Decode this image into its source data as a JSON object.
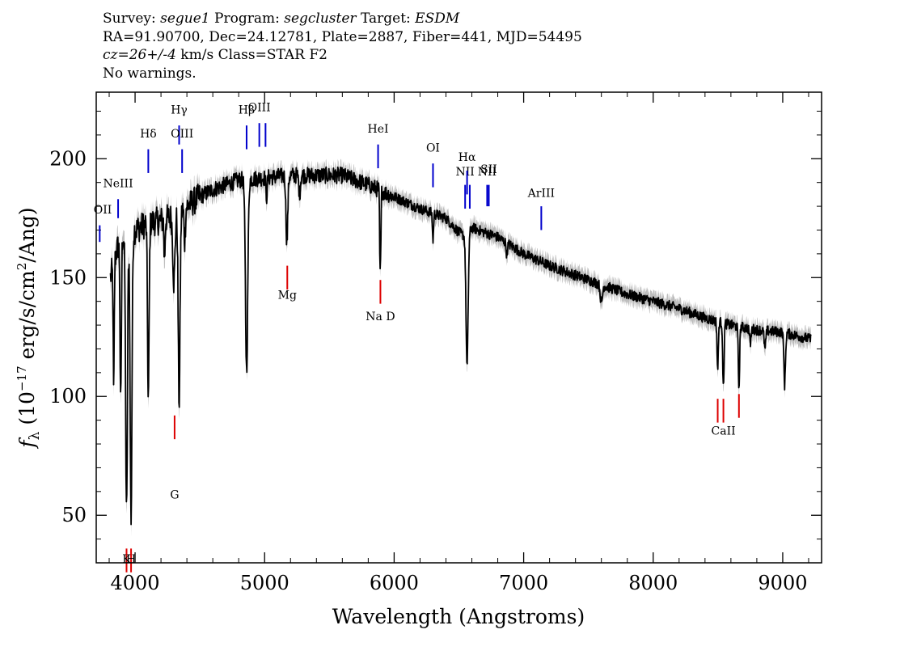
{
  "header": {
    "line1": {
      "survey_label": "Survey: ",
      "survey": "segue1",
      "program_label": " Program: ",
      "program": "segcluster",
      "target_label": " Target: ",
      "target": "ESDM"
    },
    "line2": "RA=91.90700, Dec=24.12781, Plate=2887, Fiber=441, MJD=54495",
    "line3": {
      "cz": "cz=26+/-4",
      "rest": " km/s Class=STAR F2"
    },
    "line4": "No warnings."
  },
  "chart_data": {
    "type": "line",
    "title": "",
    "xlabel": "Wavelength (Angstroms)",
    "ylabel": "fλ (10⁻¹⁷ erg/s/cm²/Ang)",
    "xlim": [
      3700,
      9300
    ],
    "ylim": [
      30,
      228
    ],
    "xticks": [
      4000,
      5000,
      6000,
      7000,
      8000,
      9000
    ],
    "xtick_labels": [
      "4000",
      "5000",
      "6000",
      "7000",
      "8000",
      "9000"
    ],
    "yticks": [
      50,
      100,
      150,
      200
    ],
    "ytick_labels": [
      "50",
      "100",
      "150",
      "200"
    ],
    "x_minor_step": 200,
    "y_minor_step": 10,
    "grid": false,
    "colors": {
      "spectrum": "#000000",
      "error_band": "#bdbdbd",
      "emission": "#0000cc",
      "absorption": "#dd0000"
    },
    "continuum_knots": [
      [
        3810,
        150
      ],
      [
        3860,
        162
      ],
      [
        3900,
        167
      ],
      [
        4000,
        170
      ],
      [
        4100,
        173
      ],
      [
        4200,
        174
      ],
      [
        4300,
        176
      ],
      [
        4400,
        180
      ],
      [
        4500,
        184
      ],
      [
        4600,
        187
      ],
      [
        4700,
        189
      ],
      [
        4800,
        191
      ],
      [
        5000,
        192
      ],
      [
        5200,
        193
      ],
      [
        5400,
        193
      ],
      [
        5600,
        193
      ],
      [
        5800,
        189
      ],
      [
        6000,
        184
      ],
      [
        6200,
        179
      ],
      [
        6400,
        175
      ],
      [
        6500,
        169
      ],
      [
        6560,
        167
      ],
      [
        6600,
        171
      ],
      [
        6800,
        167
      ],
      [
        7000,
        160
      ],
      [
        7200,
        155
      ],
      [
        7400,
        151
      ],
      [
        7600,
        147
      ],
      [
        7800,
        143
      ],
      [
        8000,
        140
      ],
      [
        8200,
        137
      ],
      [
        8400,
        133
      ],
      [
        8600,
        130
      ],
      [
        8800,
        128
      ],
      [
        9000,
        127
      ],
      [
        9220,
        124
      ]
    ],
    "absorption_features": [
      [
        3835,
        55,
        4
      ],
      [
        3889,
        70,
        5
      ],
      [
        3934,
        118,
        7
      ],
      [
        3969,
        120,
        7
      ],
      [
        4102,
        75,
        6
      ],
      [
        4227,
        18,
        4
      ],
      [
        4300,
        28,
        8
      ],
      [
        4340,
        80,
        7
      ],
      [
        4383,
        14,
        5
      ],
      [
        4861,
        80,
        9
      ],
      [
        5015,
        8,
        5
      ],
      [
        5172,
        28,
        7
      ],
      [
        5270,
        8,
        6
      ],
      [
        5890,
        28,
        3
      ],
      [
        5896,
        26,
        3
      ],
      [
        6300,
        12,
        4
      ],
      [
        6563,
        55,
        8
      ],
      [
        6870,
        5,
        5
      ],
      [
        7600,
        8,
        8
      ],
      [
        8498,
        20,
        5
      ],
      [
        8542,
        28,
        5
      ],
      [
        8662,
        26,
        5
      ],
      [
        8750,
        6,
        6
      ],
      [
        8863,
        8,
        6
      ],
      [
        9015,
        22,
        6
      ]
    ],
    "noise_seed": 12345,
    "emission_lines": [
      {
        "label": "OII",
        "wave": 3727,
        "label_y": 177,
        "line_y": [
          172,
          165
        ]
      },
      {
        "label": "NeIII",
        "wave": 3869,
        "label_y": 188,
        "line_y": [
          183,
          175
        ]
      },
      {
        "label": "Hδ",
        "wave": 4102,
        "label_y": 209,
        "line_y": [
          204,
          194
        ]
      },
      {
        "label": "Hγ",
        "wave": 4340,
        "label_y": 219,
        "line_y": [
          214,
          206
        ]
      },
      {
        "label": "OIII",
        "wave": 4363,
        "label_y": 209,
        "line_y": [
          204,
          194
        ]
      },
      {
        "label": "Hβ",
        "wave": 4861,
        "label_y": 219,
        "line_y": [
          214,
          204
        ]
      },
      {
        "label": "OIII",
        "wave": 4959,
        "label_y": 220,
        "line_y": [
          215,
          205
        ]
      },
      {
        "label": "",
        "wave": 5007,
        "label_y": 220,
        "line_y": [
          215,
          205
        ]
      },
      {
        "label": "HeI",
        "wave": 5876,
        "label_y": 211,
        "line_y": [
          206,
          196
        ]
      },
      {
        "label": "OI",
        "wave": 6300,
        "label_y": 203,
        "line_y": [
          198,
          188
        ]
      },
      {
        "label": "NII",
        "wave": 6548,
        "label_y": 193,
        "line_y": [
          189,
          179
        ]
      },
      {
        "label": "Hα",
        "wave": 6563,
        "label_y": 199,
        "line_y": [
          195,
          185
        ]
      },
      {
        "label": "",
        "wave": 6584,
        "label_y": 193,
        "line_y": [
          189,
          179
        ]
      },
      {
        "label": "NII",
        "wave": 6718,
        "label_y": 193,
        "line_y": [
          189,
          180
        ]
      },
      {
        "label": "SII",
        "wave": 6731,
        "label_y": 194,
        "line_y": [
          189,
          180
        ]
      },
      {
        "label": "ArIII",
        "wave": 7136,
        "label_y": 184,
        "line_y": [
          180,
          170
        ]
      }
    ],
    "absorption_lines": [
      {
        "label": "K",
        "wave": 3934,
        "label_y": 30,
        "line_y": [
          36,
          26
        ]
      },
      {
        "label": "H",
        "wave": 3969,
        "label_y": 30,
        "line_y": [
          36,
          26
        ]
      },
      {
        "label": "G",
        "wave": 4305,
        "label_y": 57,
        "line_y": [
          92,
          82
        ]
      },
      {
        "label": "Mg",
        "wave": 5175,
        "label_y": 141,
        "line_y": [
          155,
          145
        ]
      },
      {
        "label": "Na D",
        "wave": 5894,
        "label_y": 132,
        "line_y": [
          149,
          139
        ]
      },
      {
        "label": "CaII",
        "wave": 8542,
        "label_y": 84,
        "line_y": [
          99,
          89
        ]
      },
      {
        "label": "",
        "wave": 8498,
        "label_y": 84,
        "line_y": [
          99,
          89
        ]
      },
      {
        "label": "",
        "wave": 8662,
        "label_y": 84,
        "line_y": [
          101,
          91
        ]
      }
    ]
  }
}
